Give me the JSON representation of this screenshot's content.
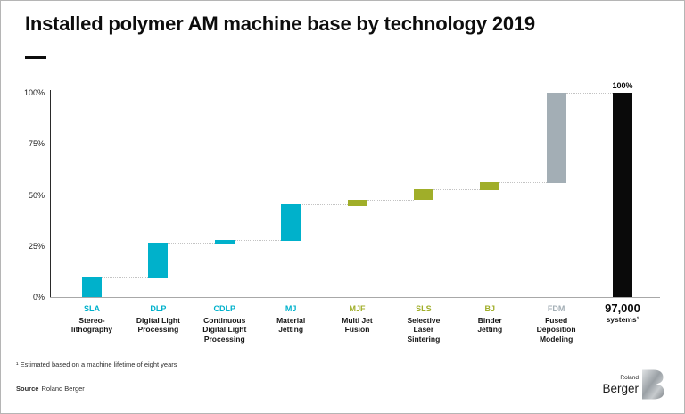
{
  "header": {
    "title": "Installed polymer AM machine base by technology 2019"
  },
  "footnote": "¹ Estimated based on a machine lifetime of eight years",
  "source": {
    "label": "Source",
    "value": "Roland Berger"
  },
  "logo": {
    "top": "Roland",
    "bottom": "Berger",
    "mark": "roland-berger-b-logo"
  },
  "chart_data": {
    "type": "bar",
    "subtype": "waterfall",
    "title": "Installed polymer AM machine base by technology 2019",
    "ylim": [
      0,
      100
    ],
    "y_ticks": [
      "0%",
      "25%",
      "50%",
      "75%",
      "100%"
    ],
    "grid": false,
    "legend": false,
    "colors": {
      "cyan": "#00b1cb",
      "green": "#a0ae29",
      "gray": "#a3aeb5",
      "black": "#0a0a0a"
    },
    "segments": [
      {
        "abbr": "SLA",
        "name_lines": [
          "Stereo-",
          "lithography"
        ],
        "cumulative_start": 0,
        "cumulative_end": 9.5,
        "share_pct": 9.5,
        "color": "cyan"
      },
      {
        "abbr": "DLP",
        "name_lines": [
          "Digital Light",
          "Processing"
        ],
        "cumulative_start": 9,
        "cumulative_end": 26.5,
        "share_pct": 17.5,
        "color": "cyan"
      },
      {
        "abbr": "CDLP",
        "name_lines": [
          "Continuous",
          "Digital Light",
          "Processing"
        ],
        "cumulative_start": 26,
        "cumulative_end": 28,
        "share_pct": 2,
        "color": "cyan"
      },
      {
        "abbr": "MJ",
        "name_lines": [
          "Material",
          "Jetting"
        ],
        "cumulative_start": 27.5,
        "cumulative_end": 45.5,
        "share_pct": 18,
        "color": "cyan"
      },
      {
        "abbr": "MJF",
        "name_lines": [
          "Multi Jet",
          "Fusion"
        ],
        "cumulative_start": 44.5,
        "cumulative_end": 47.5,
        "share_pct": 3,
        "color": "green"
      },
      {
        "abbr": "SLS",
        "name_lines": [
          "Selective",
          "Laser",
          "Sintering"
        ],
        "cumulative_start": 47.5,
        "cumulative_end": 53,
        "share_pct": 5.5,
        "color": "green"
      },
      {
        "abbr": "BJ",
        "name_lines": [
          "Binder",
          "Jetting"
        ],
        "cumulative_start": 52.5,
        "cumulative_end": 56.5,
        "share_pct": 4,
        "color": "green"
      },
      {
        "abbr": "FDM",
        "name_lines": [
          "Fused",
          "Deposition",
          "Modeling"
        ],
        "cumulative_start": 56,
        "cumulative_end": 100,
        "share_pct": 44,
        "color": "gray"
      },
      {
        "abbr": "97,000",
        "name_lines": [
          "systems¹"
        ],
        "is_total": true,
        "emphasis": true,
        "annotation": "100%",
        "cumulative_start": 0,
        "cumulative_end": 100,
        "share_pct": 100,
        "color": "black"
      }
    ]
  }
}
